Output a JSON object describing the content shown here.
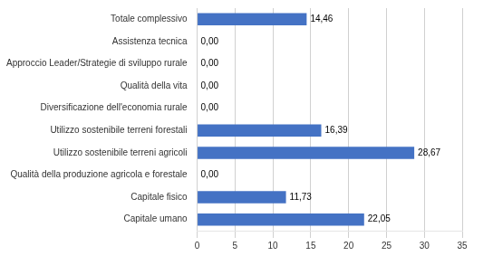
{
  "chart_data": {
    "type": "bar",
    "orientation": "horizontal",
    "categories": [
      "Capitale umano",
      "Capitale fisico",
      "Qualità della produzione agricola e forestale",
      "Utilizzo sostenibile terreni agricoli",
      "Utilizzo sostenibile terreni forestali",
      "Diversificazione dell'economia rurale",
      "Qualità della vita",
      "Approccio Leader/Strategie di sviluppo rurale",
      "Assistenza tecnica",
      "Totale complessivo"
    ],
    "values": [
      22.05,
      11.73,
      0.0,
      28.67,
      16.39,
      0.0,
      0.0,
      0.0,
      0.0,
      14.46
    ],
    "value_labels": [
      "22,05",
      "11,73",
      "0,00",
      "28,67",
      "16,39",
      "0,00",
      "0,00",
      "0,00",
      "0,00",
      "14,46"
    ],
    "data_labels": true,
    "color": "#4472C4",
    "xlim": [
      0,
      35
    ],
    "xticks": [
      0,
      5,
      10,
      15,
      20,
      25,
      30,
      35
    ],
    "grid": true
  }
}
